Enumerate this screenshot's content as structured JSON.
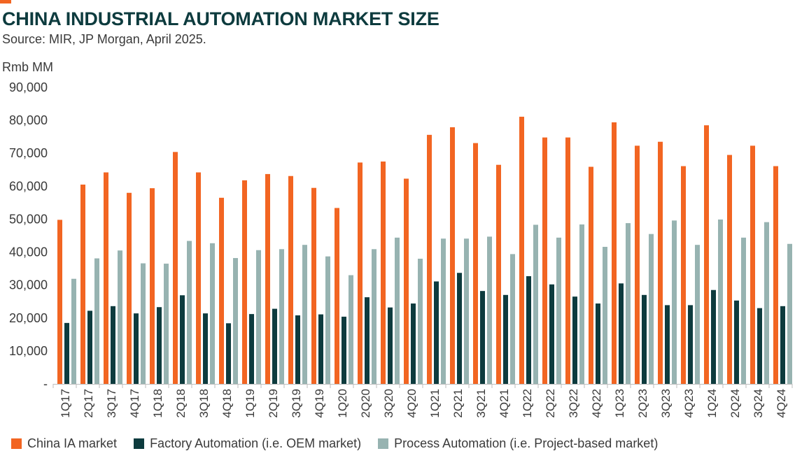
{
  "title": "CHINA INDUSTRIAL AUTOMATION MARKET SIZE",
  "subtitle": "Source: MIR, JP Morgan, April 2025.",
  "chart_data": {
    "type": "bar",
    "title": "CHINA INDUSTRIAL AUTOMATION MARKET SIZE",
    "subtitle": "Source: MIR, JP Morgan, April 2025.",
    "ylabel": "Rmb MM",
    "xlabel": "",
    "ylim": [
      0,
      90000
    ],
    "yticks": [
      0,
      10000,
      20000,
      30000,
      40000,
      50000,
      60000,
      70000,
      80000,
      90000
    ],
    "ytick_labels": [
      "-",
      "10,000",
      "20,000",
      "30,000",
      "40,000",
      "50,000",
      "60,000",
      "70,000",
      "80,000",
      "90,000"
    ],
    "grid": false,
    "legend_position": "bottom",
    "categories": [
      "1Q17",
      "2Q17",
      "3Q17",
      "4Q17",
      "1Q18",
      "2Q18",
      "3Q18",
      "4Q18",
      "1Q19",
      "2Q19",
      "3Q19",
      "4Q19",
      "1Q20",
      "2Q20",
      "3Q20",
      "4Q20",
      "1Q21",
      "2Q21",
      "3Q21",
      "4Q21",
      "1Q22",
      "2Q22",
      "3Q22",
      "4Q22",
      "1Q23",
      "2Q23",
      "3Q23",
      "4Q23",
      "1Q24",
      "2Q24",
      "3Q24",
      "4Q24"
    ],
    "series": [
      {
        "name": "China IA market",
        "color": "#f26522",
        "values": [
          49800,
          60500,
          64200,
          58000,
          59400,
          70400,
          64200,
          56500,
          61800,
          63700,
          63100,
          59500,
          53400,
          67200,
          67500,
          62300,
          75600,
          77900,
          73100,
          66500,
          81100,
          74800,
          74800,
          65900,
          79400,
          72300,
          73500,
          66100,
          78500,
          69500,
          72300,
          66100
        ]
      },
      {
        "name": "Factory Automation (i.e. OEM market)",
        "color": "#0d3b3e",
        "values": [
          18500,
          22200,
          23600,
          21400,
          23300,
          26900,
          21400,
          18400,
          21200,
          22800,
          20800,
          21100,
          20400,
          26300,
          23200,
          24400,
          31100,
          33700,
          28200,
          27000,
          32700,
          30200,
          26500,
          24400,
          30500,
          27000,
          23900,
          23900,
          28500,
          25300,
          23000,
          23600
        ]
      },
      {
        "name": "Process Automation (i.e. Project-based market)",
        "color": "#97b3b1",
        "values": [
          31900,
          38100,
          40500,
          36600,
          36500,
          43400,
          42700,
          38200,
          40600,
          40900,
          42200,
          38700,
          33000,
          40900,
          44400,
          38000,
          44100,
          44100,
          44700,
          39400,
          48300,
          44400,
          48400,
          41600,
          48800,
          45500,
          49600,
          42200,
          49900,
          44400,
          49100,
          42500
        ]
      }
    ]
  }
}
